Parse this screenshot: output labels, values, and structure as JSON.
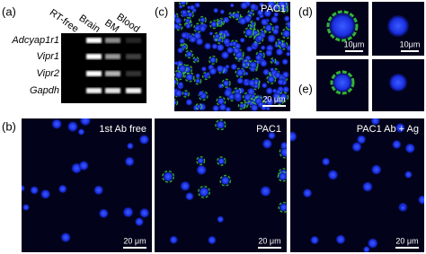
{
  "panels": {
    "a": {
      "label": "(a)",
      "lanes": [
        "RT-free",
        "Brain",
        "BM",
        "Blood"
      ],
      "genes": [
        "Adcyap1r1",
        "Vipr1",
        "Vipr2",
        "Gapdh"
      ]
    },
    "b": {
      "label": "(b)",
      "images": [
        {
          "title": "1st Ab free",
          "scale_bar": "20 μm"
        },
        {
          "title": "PAC1",
          "scale_bar": "20 μm"
        },
        {
          "title": "PAC1 Ab + Ag",
          "scale_bar": "20 μm"
        }
      ]
    },
    "c": {
      "label": "(c)",
      "title": "PAC1",
      "scale_bar": "20 μm"
    },
    "d": {
      "label": "(d)",
      "scale_bars": [
        "10μm",
        "10μm"
      ]
    },
    "e": {
      "label": "(e)"
    }
  }
}
